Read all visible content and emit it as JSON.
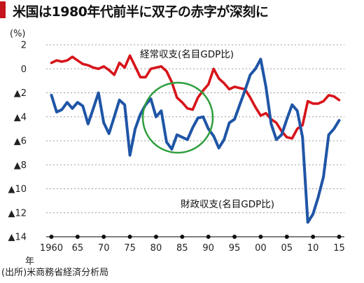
{
  "chart_data": {
    "type": "line",
    "title": "米国は1980年代前半に双子の赤字が深刻に",
    "ylabel": "(%)",
    "xunit": "年",
    "source": "(出所)米商務省経済分析局",
    "ylim": [
      -14,
      2
    ],
    "xlim": [
      1959,
      2016
    ],
    "yticks": [
      {
        "value": 2,
        "label": "2"
      },
      {
        "value": 0,
        "label": "0"
      },
      {
        "value": -2,
        "label": "▲2"
      },
      {
        "value": -4,
        "label": "▲4"
      },
      {
        "value": -6,
        "label": "▲6"
      },
      {
        "value": -8,
        "label": "▲8"
      },
      {
        "value": -10,
        "label": "▲10"
      },
      {
        "value": -12,
        "label": "▲12"
      },
      {
        "value": -14,
        "label": "▲14"
      }
    ],
    "xticks": [
      {
        "value": 1960,
        "label": "1960"
      },
      {
        "value": 1965,
        "label": "65"
      },
      {
        "value": 1970,
        "label": "70"
      },
      {
        "value": 1975,
        "label": "75"
      },
      {
        "value": 1980,
        "label": "80"
      },
      {
        "value": 1985,
        "label": "85"
      },
      {
        "value": 1990,
        "label": "90"
      },
      {
        "value": 1995,
        "label": "95"
      },
      {
        "value": 2000,
        "label": "00"
      },
      {
        "value": 2005,
        "label": "05"
      },
      {
        "value": 2010,
        "label": "10"
      },
      {
        "value": 2015,
        "label": "15"
      }
    ],
    "grid": true,
    "series": [
      {
        "name": "経常収支(名目GDP比)",
        "color": "#d7141a",
        "x": [
          1960,
          1961,
          1962,
          1963,
          1964,
          1965,
          1966,
          1967,
          1968,
          1969,
          1970,
          1971,
          1972,
          1973,
          1974,
          1975,
          1976,
          1977,
          1978,
          1979,
          1980,
          1981,
          1982,
          1983,
          1984,
          1985,
          1986,
          1987,
          1988,
          1989,
          1990,
          1991,
          1992,
          1993,
          1994,
          1995,
          1996,
          1997,
          1998,
          1999,
          2000,
          2001,
          2002,
          2003,
          2004,
          2005,
          2006,
          2007,
          2008,
          2009,
          2010,
          2011,
          2012,
          2013,
          2014,
          2015
        ],
        "values": [
          0.5,
          0.7,
          0.6,
          0.7,
          1.0,
          0.7,
          0.4,
          0.3,
          0.1,
          0.0,
          0.2,
          -0.1,
          -0.5,
          0.5,
          0.1,
          1.1,
          0.2,
          -0.7,
          -0.7,
          0.0,
          0.1,
          0.2,
          -0.2,
          -1.1,
          -2.4,
          -2.8,
          -3.3,
          -3.4,
          -2.4,
          -1.8,
          -1.3,
          0.0,
          -0.8,
          -1.2,
          -1.7,
          -1.5,
          -1.6,
          -1.7,
          -2.4,
          -3.2,
          -3.9,
          -3.7,
          -4.2,
          -4.5,
          -5.2,
          -5.7,
          -5.8,
          -5.0,
          -4.7,
          -2.7,
          -2.9,
          -2.9,
          -2.7,
          -2.2,
          -2.3,
          -2.6
        ]
      },
      {
        "name": "財政収支(名目GDP比)",
        "color": "#1f55a6",
        "x": [
          1960,
          1961,
          1962,
          1963,
          1964,
          1965,
          1966,
          1967,
          1968,
          1969,
          1970,
          1971,
          1972,
          1973,
          1974,
          1975,
          1976,
          1977,
          1978,
          1979,
          1980,
          1981,
          1982,
          1983,
          1984,
          1985,
          1986,
          1987,
          1988,
          1989,
          1990,
          1991,
          1992,
          1993,
          1994,
          1995,
          1996,
          1997,
          1998,
          1999,
          2000,
          2001,
          2002,
          2003,
          2004,
          2005,
          2006,
          2007,
          2008,
          2009,
          2010,
          2011,
          2012,
          2013,
          2014,
          2015
        ],
        "values": [
          -2.2,
          -3.6,
          -3.4,
          -2.8,
          -3.3,
          -2.8,
          -3.1,
          -4.6,
          -3.3,
          -2.0,
          -4.5,
          -5.4,
          -4.0,
          -2.6,
          -3.0,
          -7.2,
          -5.0,
          -3.8,
          -3.0,
          -2.5,
          -4.0,
          -3.5,
          -6.1,
          -6.7,
          -5.5,
          -5.7,
          -5.9,
          -4.9,
          -4.1,
          -4.0,
          -5.0,
          -5.6,
          -6.6,
          -5.9,
          -4.5,
          -4.2,
          -3.0,
          -1.8,
          -0.5,
          0.0,
          0.8,
          -1.5,
          -4.6,
          -5.9,
          -5.5,
          -4.2,
          -3.0,
          -3.5,
          -5.7,
          -12.8,
          -12.1,
          -10.7,
          -9.0,
          -5.5,
          -5.0,
          -4.3
        ]
      }
    ]
  }
}
